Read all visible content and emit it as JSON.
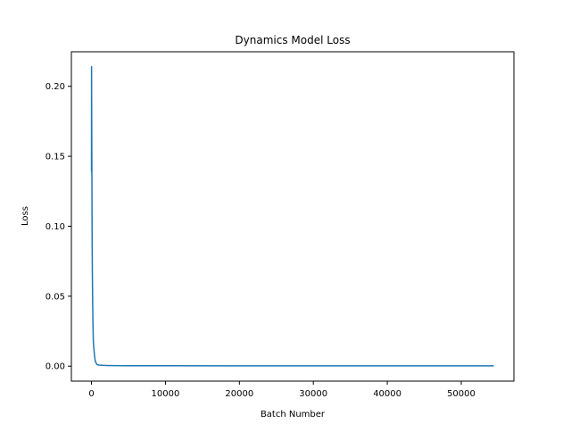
{
  "chart_data": {
    "type": "line",
    "title": "Dynamics Model Loss",
    "xlabel": "Batch Number",
    "ylabel": "Loss",
    "xlim": [
      -2720,
      57120
    ],
    "ylim": [
      -0.0107,
      0.2247
    ],
    "xticks": [
      0,
      10000,
      20000,
      30000,
      40000,
      50000
    ],
    "xtick_labels": [
      "0",
      "10000",
      "20000",
      "30000",
      "40000",
      "50000"
    ],
    "yticks": [
      0.0,
      0.05,
      0.1,
      0.15,
      0.2
    ],
    "ytick_labels": [
      "0.00",
      "0.05",
      "0.10",
      "0.15",
      "0.20"
    ],
    "grid": false,
    "series": [
      {
        "color": "#1f77b4",
        "x": [
          0,
          10,
          20,
          40,
          60,
          80,
          100,
          130,
          160,
          200,
          250,
          300,
          350,
          400,
          450,
          500,
          600,
          700,
          800,
          1000,
          1500,
          2000,
          3000,
          5000,
          10000,
          20000,
          30000,
          40000,
          50000,
          54400
        ],
        "values": [
          0.139,
          0.214,
          0.19,
          0.16,
          0.13,
          0.1,
          0.08,
          0.06,
          0.045,
          0.03,
          0.018,
          0.014,
          0.011,
          0.008,
          0.006,
          0.004,
          0.0025,
          0.0015,
          0.001,
          0.0008,
          0.0006,
          0.0005,
          0.0004,
          0.0003,
          0.0003,
          0.0002,
          0.0002,
          0.0002,
          0.0002,
          0.0002
        ]
      }
    ]
  }
}
